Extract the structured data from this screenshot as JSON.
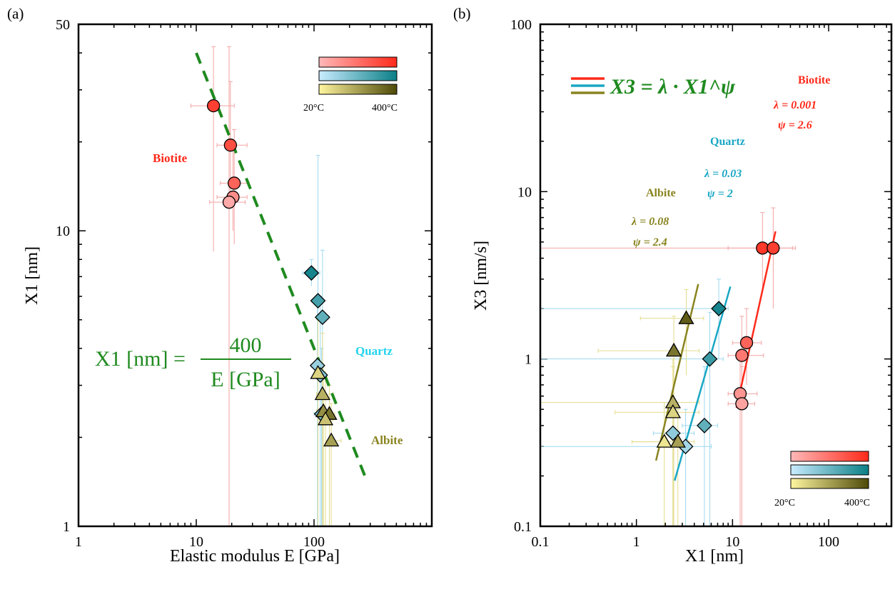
{
  "colors": {
    "biotite": "#ff2a1a",
    "quartz": "#1aa7c4",
    "albite": "#8a8420",
    "fit_a": "#1f8a1f",
    "quartz_text": "#22d3ee",
    "biotite_grad": [
      "#ffb8b8",
      "#ff2a1a"
    ],
    "quartz_grad": [
      "#c9ecff",
      "#0b7f86"
    ],
    "albite_grad": [
      "#fff6a0",
      "#4e4a08"
    ]
  },
  "chart_data": [
    {
      "panel_label": "(a)",
      "type": "scatter",
      "xscale": "log",
      "yscale": "log",
      "xlim": [
        1,
        1000
      ],
      "ylim": [
        1,
        50
      ],
      "xticks": [
        1,
        10,
        100
      ],
      "yticks": [
        1,
        10,
        50
      ],
      "xlabel": "Elastic modulus E [GPa]",
      "ylabel": "X1 [nm]",
      "legend_bar_labels": [
        "20°C",
        "400°C"
      ],
      "fit_label": {
        "lhs": "X1 [nm] =",
        "numerator": "400",
        "denominator": "E [GPa]"
      },
      "fit": {
        "coefficient": 400,
        "x_range": [
          10,
          270
        ]
      },
      "annotations": [
        "Biotite",
        "Quartz",
        "Albite"
      ],
      "series": [
        {
          "name": "Biotite",
          "marker": "circle",
          "points": [
            {
              "x": 14,
              "y": 26.5,
              "t": 0.85,
              "xerr": [
                9,
                21
              ],
              "yerr": [
                8.5,
                42
              ]
            },
            {
              "x": 19.5,
              "y": 19.5,
              "t": 0.75,
              "xerr": [
                15,
                27
              ],
              "yerr": [
                12,
                32
              ]
            },
            {
              "x": 21,
              "y": 14.5,
              "t": 0.6,
              "xerr": [
                16,
                28
              ],
              "yerr": [
                9,
                22
              ]
            },
            {
              "x": 20.5,
              "y": 13,
              "t": 0.3,
              "xerr": [
                15,
                27
              ],
              "yerr": [
                10,
                20
              ]
            },
            {
              "x": 19,
              "y": 12.5,
              "t": 0.1,
              "xerr": [
                13,
                26
              ],
              "yerr": [
                1,
                42
              ]
            }
          ]
        },
        {
          "name": "Quartz",
          "marker": "diamond",
          "points": [
            {
              "x": 95,
              "y": 7.2,
              "t": 0.95,
              "xerr": [
                80,
                112
              ],
              "yerr": [
                6.5,
                8
              ]
            },
            {
              "x": 108,
              "y": 5.8,
              "t": 0.7,
              "xerr": [
                100,
                116
              ],
              "yerr": [
                1,
                18
              ]
            },
            {
              "x": 118,
              "y": 5.1,
              "t": 0.55,
              "xerr": [
                105,
                132
              ],
              "yerr": [
                1,
                8.6
              ]
            },
            {
              "x": 107,
              "y": 3.5,
              "t": 0.25,
              "xerr": [
                95,
                120
              ],
              "yerr": [
                1,
                6
              ]
            },
            {
              "x": 113,
              "y": 3.25,
              "t": 0.35,
              "xerr": [
                100,
                125
              ],
              "yerr": [
                1,
                6
              ]
            },
            {
              "x": 116,
              "y": 2.4,
              "t": 0.4,
              "xerr": [
                100,
                130
              ],
              "yerr": [
                1,
                4
              ]
            }
          ]
        },
        {
          "name": "Albite",
          "marker": "triangle",
          "points": [
            {
              "x": 108,
              "y": 3.3,
              "t": 0.2,
              "xerr": [
                100,
                125
              ],
              "yerr": [
                1,
                5
              ]
            },
            {
              "x": 118,
              "y": 2.8,
              "t": 0.4,
              "xerr": [
                105,
                145
              ],
              "yerr": [
                1,
                4.5
              ]
            },
            {
              "x": 120,
              "y": 2.45,
              "t": 0.6,
              "xerr": [
                105,
                140
              ],
              "yerr": [
                1,
                3.5
              ]
            },
            {
              "x": 135,
              "y": 2.4,
              "t": 0.75,
              "xerr": [
                120,
                150
              ],
              "yerr": [
                1,
                3
              ]
            },
            {
              "x": 125,
              "y": 2.3,
              "t": 0.3,
              "xerr": [
                110,
                145
              ],
              "yerr": [
                1,
                3.2
              ]
            },
            {
              "x": 140,
              "y": 1.95,
              "t": 0.5,
              "xerr": [
                125,
                170
              ],
              "yerr": [
                1,
                2.6
              ]
            }
          ]
        }
      ]
    },
    {
      "panel_label": "(b)",
      "type": "scatter",
      "xscale": "log",
      "yscale": "log",
      "xlim": [
        0.1,
        450
      ],
      "ylim": [
        0.1,
        100
      ],
      "xticks": [
        0.1,
        1,
        10,
        100
      ],
      "yticks": [
        0.1,
        1,
        10,
        100
      ],
      "xlabel": "X1 [nm]",
      "ylabel": "X3 [nm/s]",
      "legend_bar_labels": [
        "20°C",
        "400°C"
      ],
      "equation": "X3 = λ · X1^ψ",
      "fits": [
        {
          "name": "Biotite",
          "lambda": 0.001,
          "psi": 2.6,
          "x_range": [
            11,
            28
          ],
          "lambda_label": "λ = 0.001",
          "psi_label": "ψ = 2.6"
        },
        {
          "name": "Quartz",
          "lambda": 0.03,
          "psi": 2,
          "x_range": [
            2.5,
            9.5
          ],
          "lambda_label": "λ = 0.03",
          "psi_label": "ψ = 2"
        },
        {
          "name": "Albite",
          "lambda": 0.08,
          "psi": 2.4,
          "x_range": [
            1.6,
            4.4
          ],
          "lambda_label": "λ = 0.08",
          "psi_label": "ψ = 2.4"
        }
      ],
      "series": [
        {
          "name": "Biotite",
          "marker": "circle",
          "points": [
            {
              "x": 20.5,
              "y": 4.6,
              "t": 0.9,
              "xerr": [
                9,
                42
              ],
              "yerr": [
                2.5,
                7.5
              ]
            },
            {
              "x": 26.5,
              "y": 4.6,
              "t": 0.85,
              "xerr": [
                0.1,
                45
              ],
              "yerr": [
                2,
                8
              ]
            },
            {
              "x": 14,
              "y": 1.25,
              "t": 0.6,
              "xerr": [
                10,
                20
              ],
              "yerr": [
                0.7,
                2
              ]
            },
            {
              "x": 12.5,
              "y": 1.05,
              "t": 0.45,
              "xerr": [
                9,
                21
              ],
              "yerr": [
                0.5,
                1.8
              ]
            },
            {
              "x": 12,
              "y": 0.62,
              "t": 0.25,
              "xerr": [
                9,
                18
              ],
              "yerr": [
                0.1,
                1
              ]
            },
            {
              "x": 12.5,
              "y": 0.54,
              "t": 0.15,
              "xerr": [
                9,
                17
              ],
              "yerr": [
                0.1,
                0.9
              ]
            }
          ]
        },
        {
          "name": "Quartz",
          "marker": "diamond",
          "points": [
            {
              "x": 7.2,
              "y": 2,
              "t": 0.95,
              "xerr": [
                0.1,
                9
              ],
              "yerr": [
                1,
                3
              ]
            },
            {
              "x": 5.8,
              "y": 1,
              "t": 0.75,
              "xerr": [
                0.1,
                8
              ],
              "yerr": [
                0.1,
                1.9
              ]
            },
            {
              "x": 5.1,
              "y": 0.4,
              "t": 0.55,
              "xerr": [
                3,
                7
              ],
              "yerr": [
                0.1,
                0.9
              ]
            },
            {
              "x": 2.4,
              "y": 0.36,
              "t": 0.3,
              "xerr": [
                1.5,
                4
              ],
              "yerr": [
                0.1,
                0.5
              ]
            },
            {
              "x": 3.25,
              "y": 0.3,
              "t": 0.2,
              "xerr": [
                0.1,
                6
              ],
              "yerr": [
                0.1,
                0.5
              ]
            }
          ]
        },
        {
          "name": "Albite",
          "marker": "triangle",
          "points": [
            {
              "x": 3.3,
              "y": 1.75,
              "t": 0.9,
              "xerr": [
                1.1,
                5
              ],
              "yerr": [
                0.8,
                2.6
              ]
            },
            {
              "x": 2.45,
              "y": 1.12,
              "t": 0.75,
              "xerr": [
                0.4,
                4.5
              ],
              "yerr": [
                0.1,
                1.8
              ]
            },
            {
              "x": 2.4,
              "y": 0.55,
              "t": 0.4,
              "xerr": [
                0.1,
                4.5
              ],
              "yerr": [
                0.1,
                1
              ]
            },
            {
              "x": 2.4,
              "y": 0.48,
              "t": 0.2,
              "xerr": [
                0.6,
                4.5
              ],
              "yerr": [
                0.1,
                0.9
              ]
            },
            {
              "x": 1.95,
              "y": 0.32,
              "t": 0.1,
              "xerr": [
                0.9,
                3.5
              ],
              "yerr": [
                0.1,
                0.55
              ]
            },
            {
              "x": 2.7,
              "y": 0.32,
              "t": 0.5,
              "xerr": [
                0.9,
                4
              ],
              "yerr": [
                0.1,
                0.5
              ]
            }
          ]
        }
      ]
    }
  ]
}
